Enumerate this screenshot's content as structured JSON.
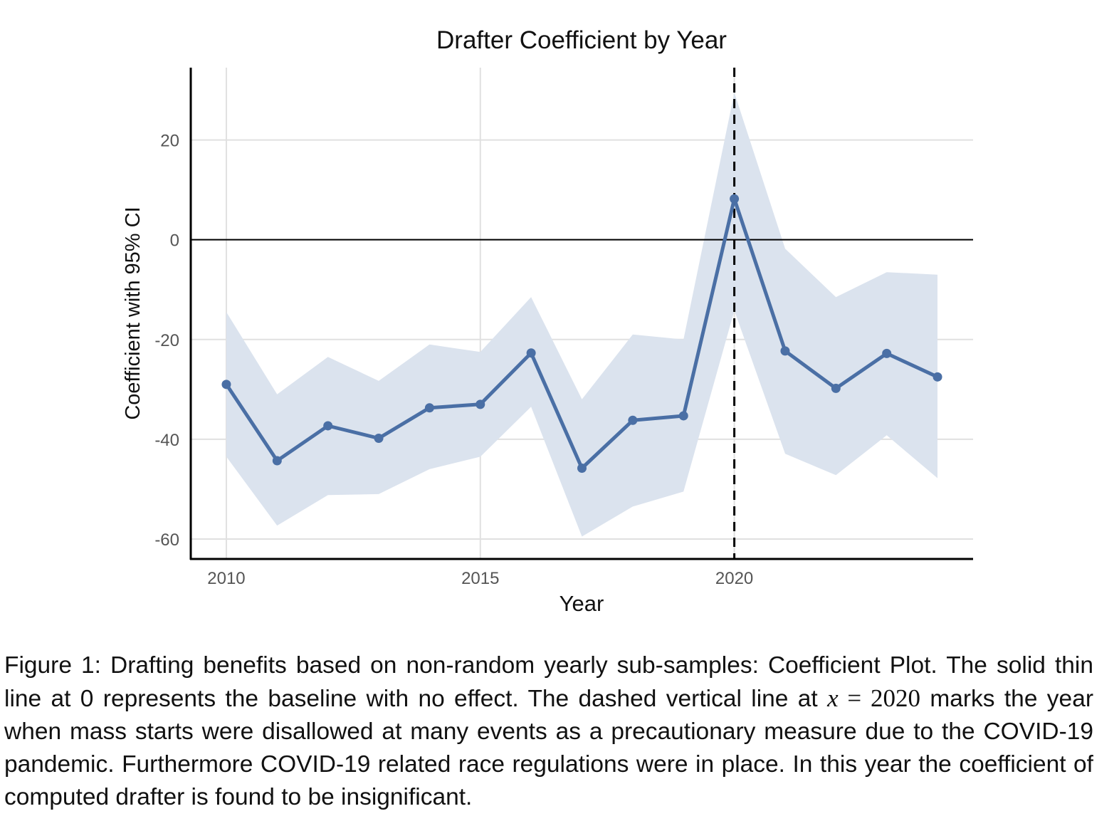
{
  "chart_data": {
    "type": "line",
    "title": "Drafter Coefficient by Year",
    "xlabel": "Year",
    "ylabel": "Coefficient with 95% CI",
    "xlim": [
      2009.3,
      2024.7
    ],
    "ylim": [
      -64,
      34.5
    ],
    "x_ticks": [
      2010,
      2015,
      2020
    ],
    "x_tick_labels": [
      "2010",
      "2015",
      "2020"
    ],
    "y_ticks": [
      -60,
      -40,
      -20,
      0,
      20
    ],
    "y_tick_labels": [
      "-60",
      "-40",
      "-20",
      "0",
      "20"
    ],
    "grid": true,
    "baseline_y": 0,
    "vline_x": 2020,
    "series": [
      {
        "name": "Coefficient",
        "color": "#4a6fa5",
        "x": [
          2010,
          2011,
          2012,
          2013,
          2014,
          2015,
          2016,
          2017,
          2018,
          2019,
          2020,
          2021,
          2022,
          2023,
          2024
        ],
        "values": [
          -29,
          -44.3,
          -37.3,
          -39.8,
          -33.7,
          -33,
          -22.7,
          -45.8,
          -36.2,
          -35.3,
          8.2,
          -22.3,
          -29.8,
          -22.8,
          -27.5
        ],
        "ci_lower": [
          -43.5,
          -57.3,
          -51.2,
          -51,
          -46,
          -43.5,
          -33.5,
          -59.5,
          -53.5,
          -50.5,
          -14.2,
          -42.9,
          -47.2,
          -39.2,
          -47.8
        ],
        "ci_upper": [
          -14.5,
          -31,
          -23.5,
          -28.3,
          -21,
          -22.5,
          -11.5,
          -32,
          -19,
          -20,
          29.5,
          -1.8,
          -11.5,
          -6.5,
          -7
        ]
      }
    ],
    "band_color": "#dbe3ee"
  },
  "caption": {
    "part1": "Figure 1: Drafting benefits based on non-random yearly sub-samples: Coefficient Plot. The solid thin line at 0 represents the baseline with no effect. The dashed vertical line at ",
    "math_var": "x",
    "math_eq": " = ",
    "math_val": "2020",
    "part2": " marks the year when mass starts were disallowed at many events as a precautionary measure due to the COVID-19 pandemic. Furthermore COVID-19 related race regulations were in place. In this year the coefficient of computed drafter is found to be insignificant."
  }
}
